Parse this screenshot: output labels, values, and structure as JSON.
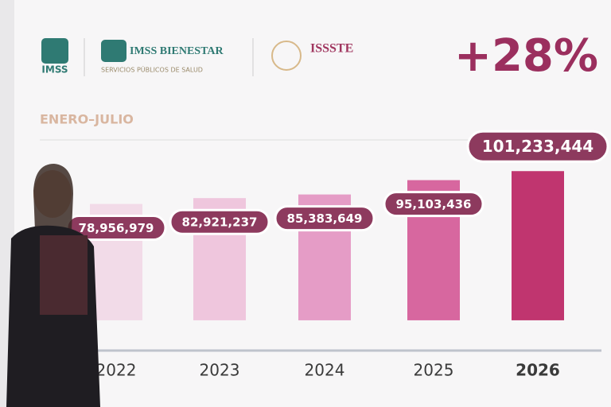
{
  "logos": {
    "imss": "IMSS",
    "bienestar": "IMSS BIENESTAR",
    "bienestar_sub": "SERVICIOS PÚBLICOS DE SALUD",
    "issste": "ISSSTE"
  },
  "chart_data": {
    "type": "bar",
    "title": "+28%",
    "subtitle": "ENERO–JULIO",
    "categories": [
      "2022",
      "2023",
      "2024",
      "2025",
      "2026"
    ],
    "values": [
      78956979,
      82921237,
      85383649,
      95103436,
      101233444
    ],
    "value_labels": [
      "78,956,979",
      "82,921,237",
      "85,383,649",
      "95,103,436",
      "101,233,444"
    ],
    "colors": [
      "#f2dbe8",
      "#efc6dd",
      "#e59cc6",
      "#d7679f",
      "#c0356f"
    ],
    "ylim": [
      -20000000,
      110000000
    ]
  }
}
